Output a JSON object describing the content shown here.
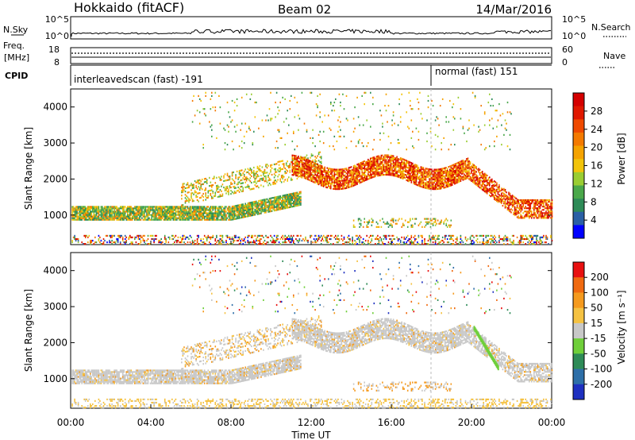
{
  "header": {
    "station": "Hokkaido (fitACF)",
    "beam": "Beam 02",
    "date": "14/Mar/2016"
  },
  "strips": {
    "nsky_label": "N.Sky",
    "nsearch_label": "N.Search",
    "nsky_ticks": [
      "10^5",
      "10^0"
    ],
    "nsearch_ticks": [
      "10^5",
      "10^0"
    ],
    "freq_label_1": "Freq.",
    "freq_label_2": "[MHz]",
    "freq_ticks": [
      "18",
      "8"
    ],
    "nave_label": "Nave",
    "nave_ticks": [
      "60",
      "0"
    ],
    "cpid_label": "CPID",
    "cpid_segments": [
      {
        "text": "interleavedscan (fast) -191",
        "start": "00:00",
        "end": "18:00"
      },
      {
        "text": "normal (fast) 151",
        "start": "18:00",
        "end": "24:00"
      }
    ]
  },
  "chart_data": [
    {
      "type": "heatmap",
      "name": "power-panel",
      "xlabel": "",
      "ylabel": "Slant Range [km]",
      "x_range_hours": [
        0,
        24
      ],
      "y_range_km": [
        180,
        4500
      ],
      "yticks": [
        "1000",
        "2000",
        "3000",
        "4000"
      ],
      "colorbar": {
        "label": "Power [dB]",
        "ticks": [
          "4",
          "8",
          "12",
          "16",
          "20",
          "24",
          "28"
        ],
        "colors": [
          "#0000ff",
          "#2a5fa5",
          "#2e8b57",
          "#4aa84a",
          "#9acd32",
          "#f2c40a",
          "#f5a300",
          "#f47a00",
          "#ef4a00",
          "#e01800",
          "#d40000"
        ]
      },
      "bands": [
        {
          "range_km": [
            850,
            1300
          ],
          "time_h": [
            0,
            10
          ],
          "level": "medium"
        },
        {
          "range_km": [
            1800,
            2800
          ],
          "time_h": [
            6,
            20
          ],
          "level": "high"
        },
        {
          "range_km": [
            900,
            2000
          ],
          "time_h": [
            20,
            24
          ],
          "level": "high"
        }
      ]
    },
    {
      "type": "heatmap",
      "name": "velocity-panel",
      "xlabel": "Time UT",
      "ylabel": "Slant Range [km]",
      "x_range_hours": [
        0,
        24
      ],
      "y_range_km": [
        180,
        4500
      ],
      "yticks": [
        "1000",
        "2000",
        "3000",
        "4000"
      ],
      "xticks": [
        "00:00",
        "04:00",
        "08:00",
        "12:00",
        "16:00",
        "20:00",
        "00:00"
      ],
      "colorbar": {
        "label": "Velocity [m s⁻¹]",
        "ticks": [
          "200",
          "100",
          "50",
          "15",
          "-15",
          "-50",
          "-100",
          "-200"
        ],
        "colors": [
          "#1e30c0",
          "#2e6fa8",
          "#2e8b57",
          "#6fcf3a",
          "#c8c8c8",
          "#f5c242",
          "#f59a1e",
          "#f06a10",
          "#e81010"
        ]
      }
    }
  ]
}
